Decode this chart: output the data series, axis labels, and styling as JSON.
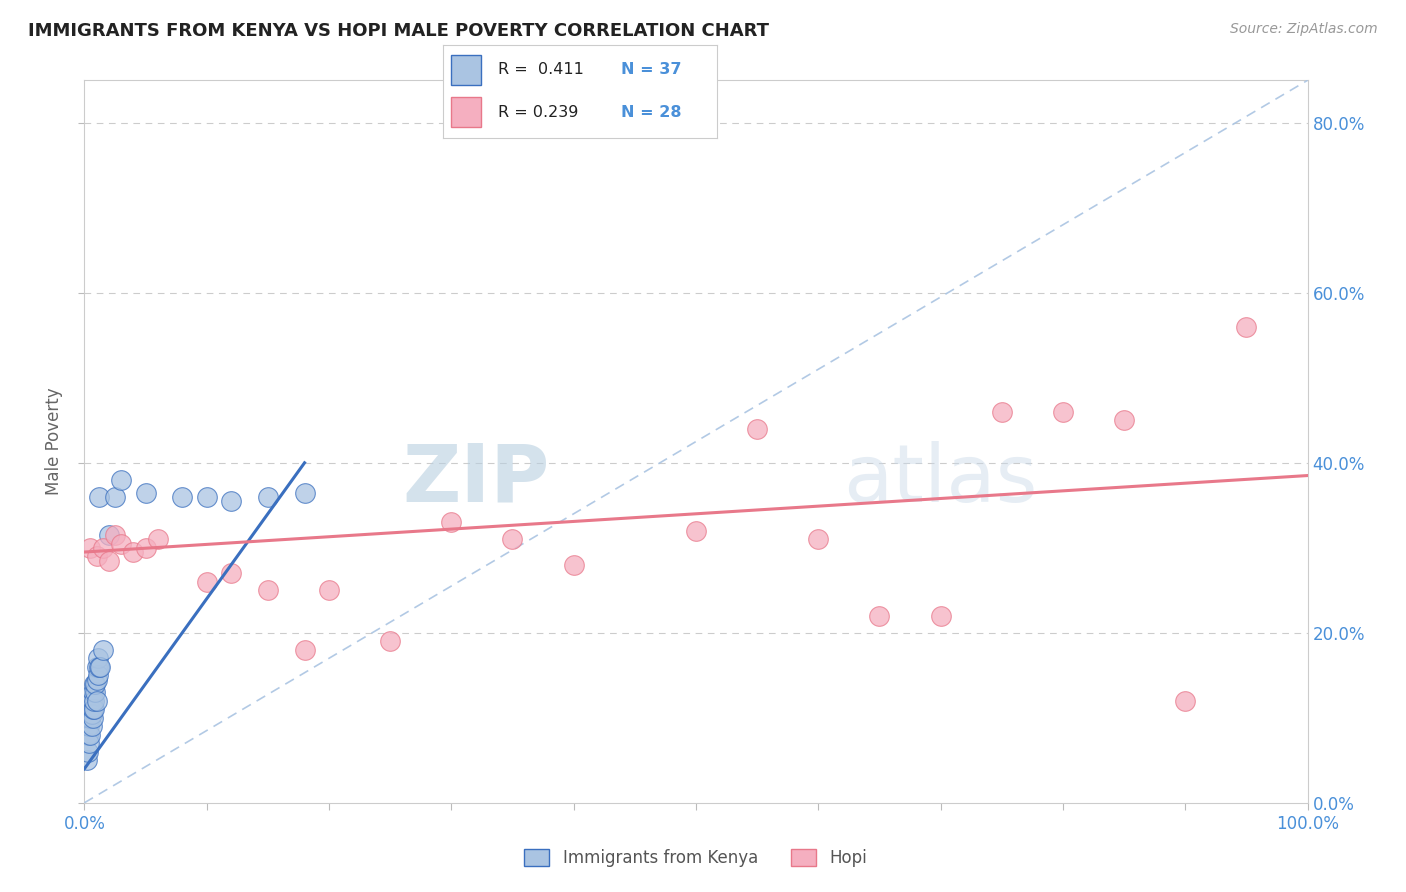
{
  "title": "IMMIGRANTS FROM KENYA VS HOPI MALE POVERTY CORRELATION CHART",
  "source_text": "Source: ZipAtlas.com",
  "ylabel": "Male Poverty",
  "watermark_zip": "ZIP",
  "watermark_atlas": "atlas",
  "legend_r1": "R =  0.411",
  "legend_n1": "N = 37",
  "legend_r2": "R = 0.239",
  "legend_n2": "N = 28",
  "series1_color": "#aac4e2",
  "series2_color": "#f5afc0",
  "line1_color": "#3a6fbf",
  "line2_color": "#e8788a",
  "diag_color": "#aac4e2",
  "title_color": "#222222",
  "axis_label_color": "#4a90d9",
  "grid_color": "#cccccc",
  "background_color": "#ffffff",
  "blue_x": [
    0.2,
    0.3,
    0.3,
    0.4,
    0.4,
    0.5,
    0.5,
    0.5,
    0.6,
    0.6,
    0.6,
    0.7,
    0.7,
    0.7,
    0.8,
    0.8,
    0.8,
    0.9,
    0.9,
    1.0,
    1.0,
    1.0,
    1.1,
    1.1,
    1.2,
    1.2,
    1.3,
    1.5,
    2.0,
    2.5,
    3.0,
    5.0,
    8.0,
    10.0,
    12.0,
    15.0,
    18.0
  ],
  "blue_y": [
    5.0,
    6.0,
    8.0,
    7.0,
    9.0,
    8.0,
    10.0,
    11.0,
    9.0,
    10.5,
    12.0,
    10.0,
    11.0,
    13.0,
    11.0,
    12.0,
    14.0,
    13.0,
    14.0,
    12.0,
    14.5,
    16.0,
    15.0,
    17.0,
    16.0,
    36.0,
    16.0,
    18.0,
    31.5,
    36.0,
    38.0,
    36.5,
    36.0,
    36.0,
    35.5,
    36.0,
    36.5
  ],
  "pink_x": [
    0.5,
    1.0,
    1.5,
    2.0,
    2.5,
    3.0,
    4.0,
    5.0,
    6.0,
    10.0,
    12.0,
    15.0,
    18.0,
    20.0,
    25.0,
    30.0,
    35.0,
    40.0,
    50.0,
    55.0,
    60.0,
    65.0,
    70.0,
    75.0,
    80.0,
    85.0,
    90.0,
    95.0
  ],
  "pink_y": [
    30.0,
    29.0,
    30.0,
    28.5,
    31.5,
    30.5,
    29.5,
    30.0,
    31.0,
    26.0,
    27.0,
    25.0,
    18.0,
    25.0,
    19.0,
    33.0,
    31.0,
    28.0,
    32.0,
    44.0,
    31.0,
    22.0,
    22.0,
    46.0,
    46.0,
    45.0,
    12.0,
    56.0
  ],
  "xmin": 0.0,
  "xmax": 100.0,
  "ymin": 0.0,
  "ymax": 85.0,
  "yticks": [
    0,
    20,
    40,
    60,
    80
  ],
  "ytick_labels": [
    "0.0%",
    "20.0%",
    "40.0%",
    "60.0%",
    "80.0%"
  ],
  "xticks": [
    0,
    10,
    20,
    30,
    40,
    50,
    60,
    70,
    80,
    90,
    100
  ],
  "xtick_labels": [
    "0.0%",
    "",
    "",
    "",
    "",
    "",
    "",
    "",
    "",
    "",
    "100.0%"
  ]
}
